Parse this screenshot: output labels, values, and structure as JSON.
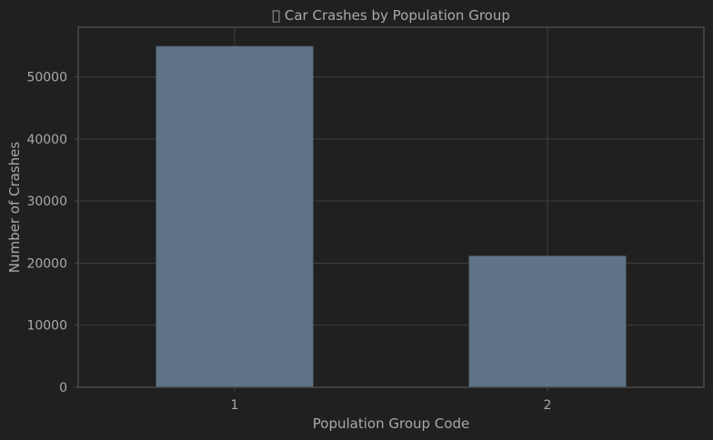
{
  "chart_data": {
    "type": "bar",
    "title": " Car Crashes by Population Group",
    "xlabel": "Population Group Code",
    "ylabel": "Number of Crashes",
    "categories": [
      "1",
      "2"
    ],
    "values": [
      54900,
      21100
    ],
    "ylim": [
      0,
      58000
    ],
    "yticks": [
      0,
      10000,
      20000,
      30000,
      40000,
      50000
    ],
    "grid": true,
    "bar_color": "#5f7587",
    "background": "#202020"
  }
}
